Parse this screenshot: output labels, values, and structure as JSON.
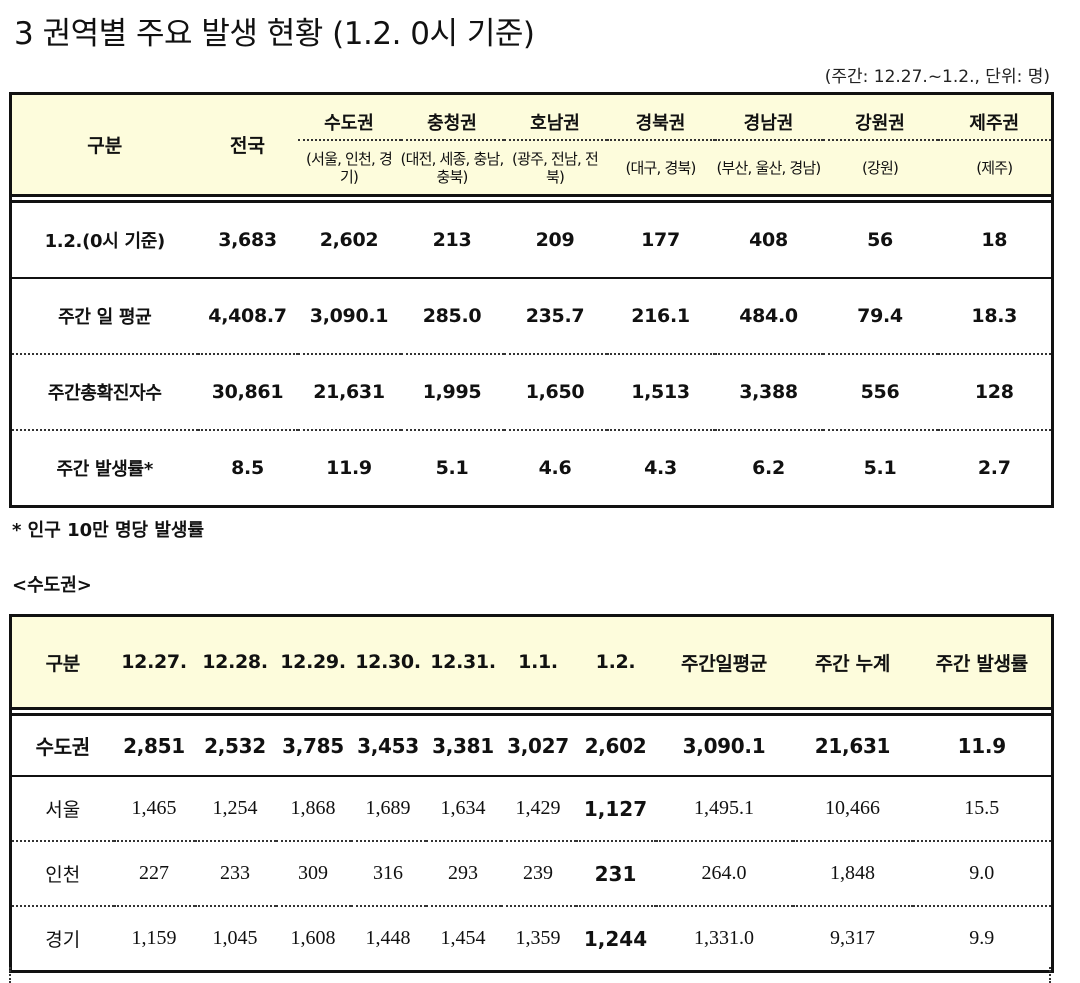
{
  "title": "3  권역별 주요 발생 현황 (1.2. 0시 기준)",
  "unit_note": "(주간: 12.27.~1.2., 단위: 명)",
  "table1": {
    "header_gubun": "구분",
    "header_total": "전국",
    "regions": [
      {
        "name": "수도권",
        "sub": "(서울, 인천, 경기)"
      },
      {
        "name": "충청권",
        "sub": "(대전, 세종, 충남, 충북)"
      },
      {
        "name": "호남권",
        "sub": "(광주, 전남, 전북)"
      },
      {
        "name": "경북권",
        "sub": "(대구, 경북)"
      },
      {
        "name": "경남권",
        "sub": "(부산, 울산, 경남)"
      },
      {
        "name": "강원권",
        "sub": "(강원)"
      },
      {
        "name": "제주권",
        "sub": "(제주)"
      }
    ],
    "rows": [
      {
        "label": "1.2.(0시 기준)",
        "values": [
          "3,683",
          "2,602",
          "213",
          "209",
          "177",
          "408",
          "56",
          "18"
        ]
      },
      {
        "label": "주간 일 평균",
        "values": [
          "4,408.7",
          "3,090.1",
          "285.0",
          "235.7",
          "216.1",
          "484.0",
          "79.4",
          "18.3"
        ]
      },
      {
        "label": "주간총확진자수",
        "values": [
          "30,861",
          "21,631",
          "1,995",
          "1,650",
          "1,513",
          "3,388",
          "556",
          "128"
        ]
      },
      {
        "label": "주간 발생률*",
        "values": [
          "8.5",
          "11.9",
          "5.1",
          "4.6",
          "4.3",
          "6.2",
          "5.1",
          "2.7"
        ]
      }
    ]
  },
  "footnote": "* 인구 10만 명당 발생률",
  "section_title": "<수도권>",
  "table2": {
    "headers": [
      "구분",
      "12.27.",
      "12.28.",
      "12.29.",
      "12.30.",
      "12.31.",
      "1.1.",
      "1.2.",
      "주간일평균",
      "주간 누계",
      "주간 발생률"
    ],
    "total_row": {
      "label": "수도권",
      "values": [
        "2,851",
        "2,532",
        "3,785",
        "3,453",
        "3,381",
        "3,027",
        "2,602",
        "3,090.1",
        "21,631",
        "11.9"
      ]
    },
    "rows": [
      {
        "label": "서울",
        "values": [
          "1,465",
          "1,254",
          "1,868",
          "1,689",
          "1,634",
          "1,429",
          "1,127",
          "1,495.1",
          "10,466",
          "15.5"
        ]
      },
      {
        "label": "인천",
        "values": [
          "227",
          "233",
          "309",
          "316",
          "293",
          "239",
          "231",
          "264.0",
          "1,848",
          "9.0"
        ]
      },
      {
        "label": "경기",
        "values": [
          "1,159",
          "1,045",
          "1,608",
          "1,448",
          "1,454",
          "1,359",
          "1,244",
          "1,331.0",
          "9,317",
          "9.9"
        ]
      }
    ]
  },
  "colors": {
    "header_bg": "#fdfcdc",
    "border": "#111111"
  }
}
